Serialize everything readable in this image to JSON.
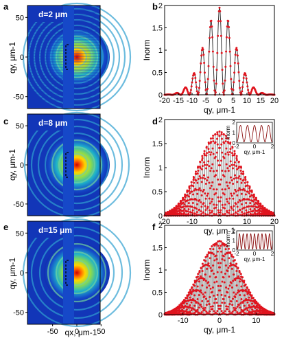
{
  "panels": {
    "a": {
      "label": "a",
      "tag": "d=2 μm",
      "xticks": [],
      "yticks": [
        "50",
        "0",
        "-50"
      ],
      "ylabel": "qy, μm-1"
    },
    "c": {
      "label": "c",
      "tag": "d=8 μm",
      "xticks": [],
      "yticks": [
        "50",
        "0",
        "-50"
      ],
      "ylabel": "qy, μm-1"
    },
    "e": {
      "label": "e",
      "tag": "d=15 μm",
      "xticks": [
        "-50",
        "0",
        "50"
      ],
      "yticks": [
        "50",
        "0",
        "-50"
      ],
      "ylabel": "qy, μm-1",
      "xlabel": "qx, μm-1"
    },
    "b": {
      "label": "b"
    },
    "d": {
      "label": "d"
    },
    "f": {
      "label": "f"
    }
  },
  "chart_data": [
    {
      "panel": "b",
      "type": "line",
      "xlabel": "qy, μm-1",
      "ylabel": "Inorm",
      "xlim": [
        -20,
        20
      ],
      "ylim": [
        0,
        2
      ],
      "xticks": [
        -20,
        -15,
        -10,
        -5,
        0,
        5,
        10,
        15,
        20
      ],
      "yticks": [
        0,
        0.5,
        1,
        1.5,
        2
      ],
      "model": {
        "fringe_period": 3.14,
        "envelope_peak": 1.95,
        "envelope_halfwidth": 8.5
      }
    },
    {
      "panel": "d",
      "type": "line",
      "xlabel": "qy, μm-1",
      "ylabel": "Inorm",
      "xlim": [
        -20,
        20
      ],
      "ylim": [
        0,
        2
      ],
      "xticks": [
        -20,
        -10,
        0,
        10,
        20
      ],
      "yticks": [
        0,
        0.5,
        1,
        1.5,
        2
      ],
      "model": {
        "fringe_period": 0.785,
        "envelope_peak": 1.75,
        "envelope_halfwidth": 11.5
      },
      "inset": {
        "xlabel": "qy, μm-1",
        "ylabel": "Inorm",
        "xlim": [
          -2,
          2
        ],
        "ylim": [
          0,
          2
        ],
        "xticks": [
          -2,
          0,
          2
        ],
        "yticks": [
          0,
          1,
          2
        ],
        "fringe_period": 0.785
      }
    },
    {
      "panel": "f",
      "type": "line",
      "xlabel": "qy, μm-1",
      "ylabel": "Inorm",
      "xlim": [
        -15,
        15
      ],
      "ylim": [
        0,
        2
      ],
      "xticks": [
        -10,
        0,
        10
      ],
      "yticks": [
        0,
        0.5,
        1,
        1.5,
        2
      ],
      "model": {
        "fringe_period": 0.42,
        "envelope_peak": 1.65,
        "envelope_halfwidth": 8.2
      },
      "inset": {
        "xlabel": "qy, μm-1",
        "ylabel": "Inorm",
        "xlim": [
          -2,
          2
        ],
        "ylim": [
          0,
          2
        ],
        "xticks": [
          -2,
          0,
          2
        ],
        "yticks": [
          0,
          1,
          2
        ],
        "fringe_period": 0.42
      }
    }
  ]
}
